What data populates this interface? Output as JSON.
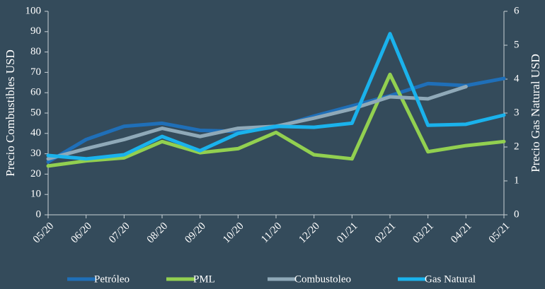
{
  "chart_data": {
    "type": "line",
    "ylabel": "Precio Combustibles USD",
    "y2label": "Precio Gas Natural USD",
    "categories": [
      "05/20",
      "06/20",
      "07/20",
      "08/20",
      "09/20",
      "10/20",
      "11/20",
      "12/20",
      "01/21",
      "02/21",
      "03/21",
      "04/21",
      "05/21"
    ],
    "series": [
      {
        "name": "Petróleo",
        "color": "#1f6fb8",
        "values": [
          26,
          37,
          43.5,
          45,
          41.5,
          41,
          43,
          48.5,
          53.5,
          58.5,
          64.5,
          63.5,
          67
        ]
      },
      {
        "name": "PML",
        "color": "#92d050",
        "values": [
          24,
          26.5,
          28,
          36,
          30.5,
          32.5,
          40.5,
          29.5,
          27.5,
          69,
          31,
          34,
          36
        ]
      },
      {
        "name": "Combustoleo",
        "color": "#8fa9b8",
        "values": [
          27.5,
          32.5,
          37,
          42.5,
          38.5,
          42.5,
          43.5,
          47.5,
          52,
          58,
          57,
          63,
          null
        ]
      },
      {
        "name": "Gas Natural",
        "color": "#1ab2ec",
        "axis": "y2",
        "values": [
          1.75,
          1.65,
          1.77,
          2.31,
          1.89,
          2.4,
          2.61,
          2.58,
          2.7,
          5.34,
          2.64,
          2.67,
          2.94
        ]
      }
    ],
    "ylim": [
      0,
      100
    ],
    "yticks": [
      0,
      10,
      20,
      30,
      40,
      50,
      60,
      70,
      80,
      90,
      100
    ],
    "y2lim": [
      0,
      6
    ],
    "y2ticks": [
      0,
      1,
      2,
      3,
      4,
      5,
      6
    ],
    "legend": "bottom"
  }
}
